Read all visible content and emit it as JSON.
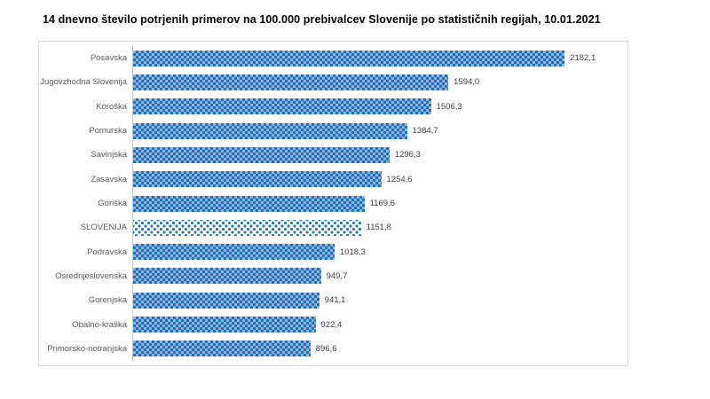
{
  "chart_data": {
    "type": "bar",
    "orientation": "horizontal",
    "title": "14 dnevno število potrjenih primerov na 100.000  prebivalcev Slovenije po statističnih regijah, 10.01.2021",
    "categories": [
      "Posavska",
      "Jugovzhodna Slovenija",
      "Koroška",
      "Pomurska",
      "Savinjska",
      "Zasavska",
      "Goriška",
      "SLOVENIJA",
      "Podravska",
      "Osrednjeslovenska",
      "Gorenjska",
      "Obalno-kraška",
      "Primorsko-notranjska"
    ],
    "values": [
      2182.1,
      1594.0,
      1506.3,
      1384.7,
      1296.3,
      1254.6,
      1169.6,
      1151.8,
      1018.3,
      949.7,
      941.1,
      922.4,
      896.6
    ],
    "value_labels": [
      "2182,1",
      "1594,0",
      "1506,3",
      "1384,7",
      "1296,3",
      "1254,6",
      "1169,6",
      "1151,8",
      "1018,3",
      "949,7",
      "941,1",
      "922,4",
      "896,6"
    ],
    "highlight_category": "SLOVENIJA",
    "xlabel": "",
    "ylabel": "",
    "xlim": [
      0,
      2500
    ],
    "grid": false,
    "legend": false,
    "colors": {
      "bar_pattern_foreground": "#2071b5",
      "bar_pattern_background": "#8fb2de",
      "highlight_pattern_foreground": "#1f78be",
      "highlight_pattern_background": "#ffffff",
      "frame_border": "#d9d9d9",
      "axis_line": "#c9c9c9",
      "category_text": "#595959",
      "value_text": "#404040",
      "title_text": "#000000"
    }
  }
}
